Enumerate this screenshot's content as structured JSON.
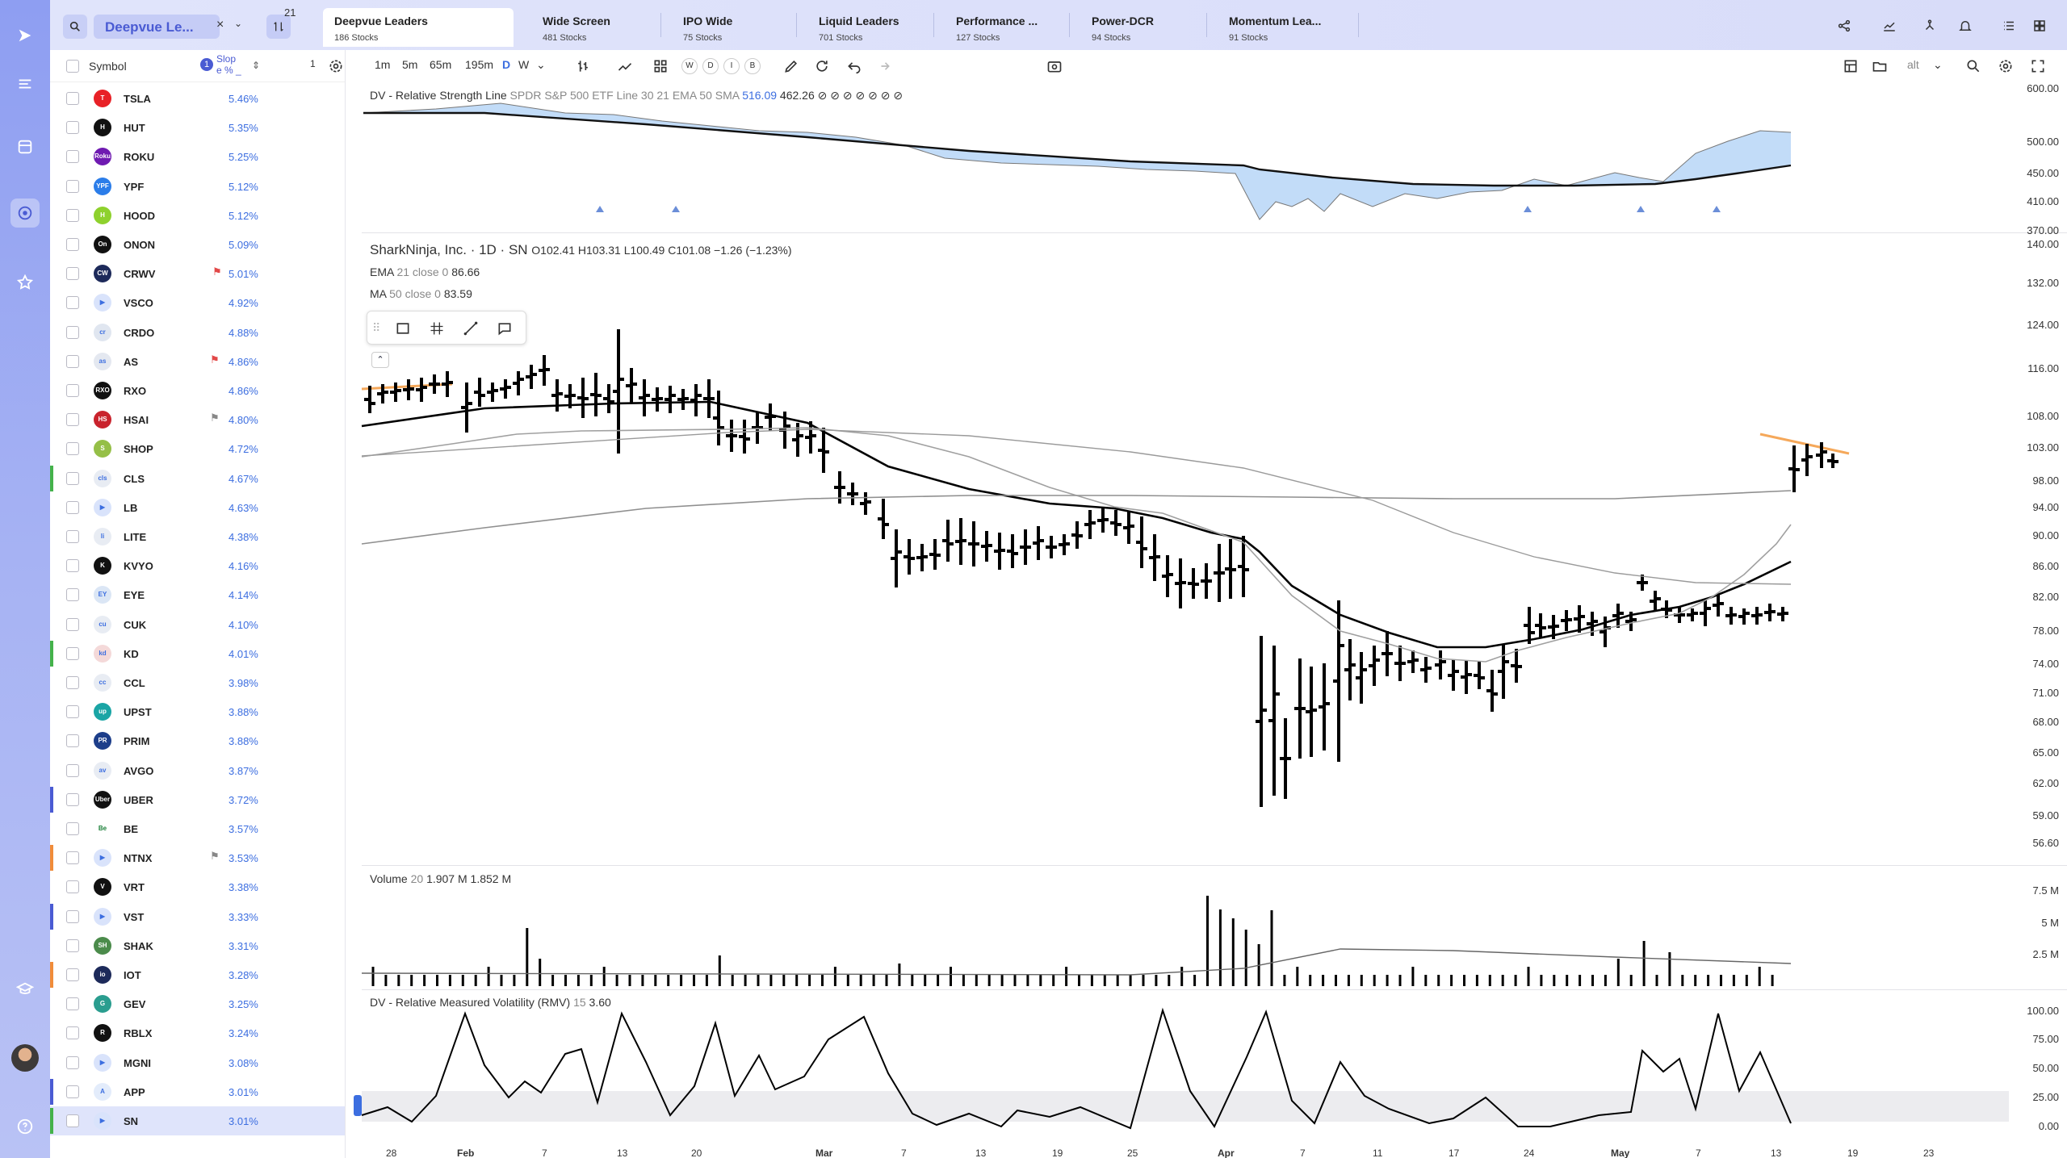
{
  "app": {
    "watchlist_name": "Deepvue Le...",
    "filter_count": "21",
    "accent": "#3c6ee0"
  },
  "tabs": [
    {
      "name": "Deepvue Leaders",
      "count": "186 Stocks"
    },
    {
      "name": "Wide Screen",
      "count": "481 Stocks"
    },
    {
      "name": "IPO Wide",
      "count": "75 Stocks"
    },
    {
      "name": "Liquid Leaders",
      "count": "701 Stocks"
    },
    {
      "name": "Performance ...",
      "count": "127 Stocks"
    },
    {
      "name": "Power-DCR",
      "count": "94 Stocks"
    },
    {
      "name": "Momentum Lea...",
      "count": "91 Stocks"
    }
  ],
  "watchlist": {
    "symbol_header": "Symbol",
    "sort_index": "1",
    "column_header": "Slop e % _",
    "rows": [
      {
        "symbol": "TSLA",
        "value": "5.46%",
        "logo": "T",
        "color": "#e82127",
        "bar": ""
      },
      {
        "symbol": "HUT",
        "value": "5.35%",
        "logo": "H",
        "color": "#111111",
        "bar": ""
      },
      {
        "symbol": "ROKU",
        "value": "5.25%",
        "logo": "Roku",
        "color": "#6f1ab1",
        "bar": ""
      },
      {
        "symbol": "YPF",
        "value": "5.12%",
        "logo": "YPF",
        "color": "#2b7de9",
        "bar": ""
      },
      {
        "symbol": "HOOD",
        "value": "5.12%",
        "logo": "H",
        "color": "#8ed12d",
        "bar": ""
      },
      {
        "symbol": "ONON",
        "value": "5.09%",
        "logo": "On",
        "color": "#111111",
        "bar": ""
      },
      {
        "symbol": "CRWV",
        "value": "5.01%",
        "logo": "CW",
        "color": "#1d2a5a",
        "bar": "",
        "flag": "red"
      },
      {
        "symbol": "VSCO",
        "value": "4.92%",
        "logo": "▶",
        "color": "#d9e3fb",
        "bar": ""
      },
      {
        "symbol": "CRDO",
        "value": "4.88%",
        "logo": "cr",
        "color": "#e0e6f0",
        "bar": ""
      },
      {
        "symbol": "AS",
        "value": "4.86%",
        "logo": "as",
        "color": "#e4e8f0",
        "bar": "",
        "flag": "red"
      },
      {
        "symbol": "RXO",
        "value": "4.86%",
        "logo": "RXO",
        "color": "#111111",
        "bar": ""
      },
      {
        "symbol": "HSAI",
        "value": "4.80%",
        "logo": "HS",
        "color": "#c9232d",
        "bar": "",
        "flag": "gray"
      },
      {
        "symbol": "SHOP",
        "value": "4.72%",
        "logo": "S",
        "color": "#95bf47",
        "bar": ""
      },
      {
        "symbol": "CLS",
        "value": "4.67%",
        "logo": "cls",
        "color": "#e8ecf3",
        "bar": "#44b24a"
      },
      {
        "symbol": "LB",
        "value": "4.63%",
        "logo": "▶",
        "color": "#d9e3fb",
        "bar": ""
      },
      {
        "symbol": "LITE",
        "value": "4.38%",
        "logo": "li",
        "color": "#e8ecf3",
        "bar": ""
      },
      {
        "symbol": "KVYO",
        "value": "4.16%",
        "logo": "K",
        "color": "#111111",
        "bar": ""
      },
      {
        "symbol": "EYE",
        "value": "4.14%",
        "logo": "EY",
        "color": "#dbe6f5",
        "bar": ""
      },
      {
        "symbol": "CUK",
        "value": "4.10%",
        "logo": "cu",
        "color": "#e8ecf3",
        "bar": ""
      },
      {
        "symbol": "KD",
        "value": "4.01%",
        "logo": "kd",
        "color": "#f4d9d9",
        "bar": "#44b24a"
      },
      {
        "symbol": "CCL",
        "value": "3.98%",
        "logo": "cc",
        "color": "#e8ecf3",
        "bar": ""
      },
      {
        "symbol": "UPST",
        "value": "3.88%",
        "logo": "up",
        "color": "#1aa5a5",
        "bar": ""
      },
      {
        "symbol": "PRIM",
        "value": "3.88%",
        "logo": "PR",
        "color": "#1d3e8a",
        "bar": ""
      },
      {
        "symbol": "AVGO",
        "value": "3.87%",
        "logo": "av",
        "color": "#e8ecf3",
        "bar": ""
      },
      {
        "symbol": "UBER",
        "value": "3.72%",
        "logo": "Uber",
        "color": "#111111",
        "bar": "#4a5bd3"
      },
      {
        "symbol": "BE",
        "value": "3.57%",
        "logo": "Be",
        "color": "#ffffff",
        "bar": ""
      },
      {
        "symbol": "NTNX",
        "value": "3.53%",
        "logo": "▶",
        "color": "#d9e3fb",
        "bar": "#f08c3a",
        "flag": "gray"
      },
      {
        "symbol": "VRT",
        "value": "3.38%",
        "logo": "V",
        "color": "#111111",
        "bar": ""
      },
      {
        "symbol": "VST",
        "value": "3.33%",
        "logo": "▶",
        "color": "#d9e3fb",
        "bar": "#4a5bd3"
      },
      {
        "symbol": "SHAK",
        "value": "3.31%",
        "logo": "SH",
        "color": "#4b8b4b",
        "bar": ""
      },
      {
        "symbol": "IOT",
        "value": "3.28%",
        "logo": "io",
        "color": "#1d2a5a",
        "bar": "#f08c3a"
      },
      {
        "symbol": "GEV",
        "value": "3.25%",
        "logo": "G",
        "color": "#2a9d8f",
        "bar": ""
      },
      {
        "symbol": "RBLX",
        "value": "3.24%",
        "logo": "R",
        "color": "#111111",
        "bar": ""
      },
      {
        "symbol": "MGNI",
        "value": "3.08%",
        "logo": "▶",
        "color": "#d9e3fb",
        "bar": ""
      },
      {
        "symbol": "APP",
        "value": "3.01%",
        "logo": "A",
        "color": "#e3ecfb",
        "bar": "#4a5bd3"
      },
      {
        "symbol": "SN",
        "value": "3.01%",
        "logo": "▶",
        "color": "#d9e3fb",
        "bar": "#44b24a",
        "selected": true
      }
    ]
  },
  "toolbar": {
    "interval_count": "1",
    "intervals": [
      "1m",
      "5m",
      "65m",
      "195m"
    ],
    "period_D": "D",
    "period_W": "W",
    "rounds": [
      "W",
      "D",
      "I",
      "B"
    ],
    "alt_label": "alt"
  },
  "rs_pane": {
    "title": "DV - Relative Strength Line",
    "params": "SPDR S&P 500 ETF Line 30 21 EMA 50 SMA",
    "v1": "516.09",
    "v2": "462.26",
    "circles": "⊘ ⊘ ⊘ ⊘ ⊘ ⊘ ⊘",
    "yticks": [
      "600.00",
      "500.00",
      "450.00",
      "410.00",
      "370.00"
    ],
    "fill_color": "#8fc0f2"
  },
  "price_pane": {
    "title": "SharkNinja, Inc. · 1D · SN",
    "ohlc": "O102.41 H103.31 L100.49 C101.08 −1.26 (−1.23%)",
    "ema_label": "EMA",
    "ema_params": "21 close 0",
    "ema_value": "86.66",
    "ma_label": "MA",
    "ma_params": "50 close 0",
    "ma_value": "83.59",
    "yticks": [
      "140.00",
      "132.00",
      "124.00",
      "116.00",
      "108.00",
      "103.00",
      "98.00",
      "94.00",
      "90.00",
      "86.00",
      "82.00",
      "78.00",
      "74.00",
      "71.00",
      "68.00",
      "65.00",
      "62.00",
      "59.00",
      "56.60"
    ],
    "trendline_color": "#f5a85a"
  },
  "volume_pane": {
    "title": "Volume",
    "period": "20",
    "v1": "1.907 M",
    "v2": "1.852 M",
    "yticks": [
      "7.5 M",
      "5 M",
      "2.5 M"
    ]
  },
  "rmv_pane": {
    "title": "DV - Relative Measured Volatility (RMV)",
    "period": "15",
    "value": "3.60",
    "yticks": [
      "100.00",
      "75.00",
      "50.00",
      "25.00",
      "0.00"
    ]
  },
  "xaxis": [
    "28",
    "Feb",
    "7",
    "13",
    "20",
    "Mar",
    "7",
    "13",
    "19",
    "25",
    "Apr",
    "7",
    "11",
    "17",
    "24",
    "May",
    "7",
    "13",
    "19",
    "23"
  ]
}
